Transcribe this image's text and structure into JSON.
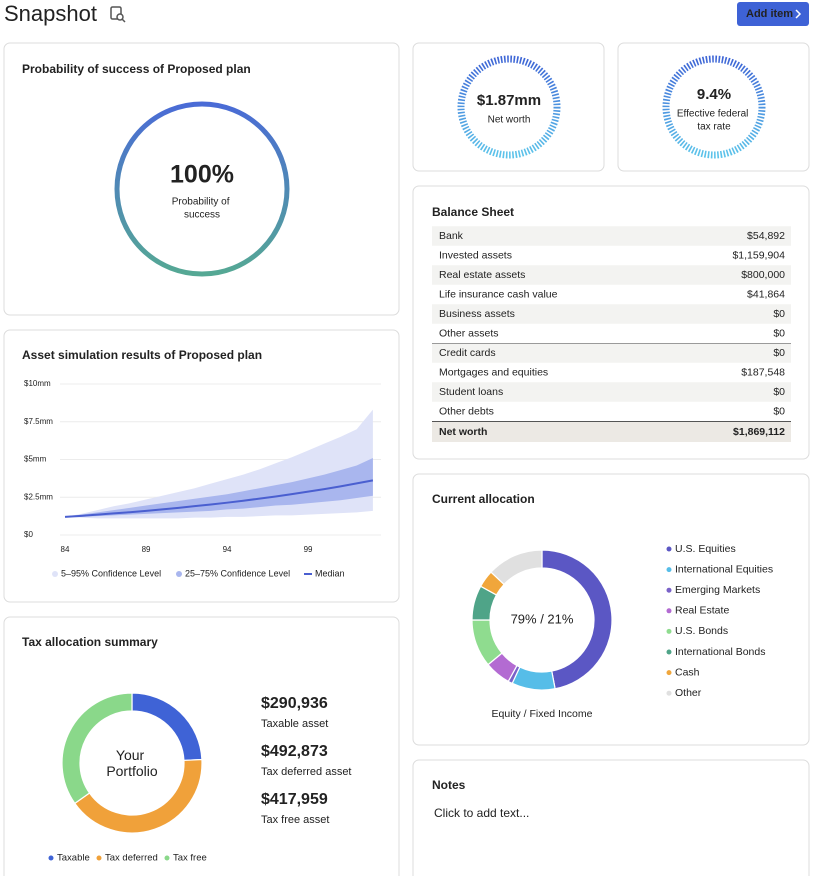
{
  "header": {
    "title": "Snapshot",
    "add_button": "Add item"
  },
  "probability": {
    "title": "Probability of success of Proposed plan",
    "value": "100%",
    "label": "Probability of success"
  },
  "net_worth": {
    "value": "$1.87mm",
    "label": "Net worth"
  },
  "tax_rate": {
    "value": "9.4%",
    "label": "Effective federal tax rate"
  },
  "balance_sheet": {
    "title": "Balance Sheet",
    "rows": [
      [
        "Bank",
        "$54,892"
      ],
      [
        "Invested assets",
        "$1,159,904"
      ],
      [
        "Real estate assets",
        "$800,000"
      ],
      [
        "Life insurance cash value",
        "$41,864"
      ],
      [
        "Business assets",
        "$0"
      ],
      [
        "Other assets",
        "$0"
      ],
      [
        "Credit cards",
        "$0"
      ],
      [
        "Mortgages and equities",
        "$187,548"
      ],
      [
        "Student loans",
        "$0"
      ],
      [
        "Other debts",
        "$0"
      ]
    ],
    "total": [
      "Net worth",
      "$1,869,112"
    ]
  },
  "notes": {
    "title": "Notes",
    "placeholder": "Click to add text..."
  },
  "chart_data": [
    {
      "type": "area",
      "title": "Asset simulation results of Proposed plan",
      "x": [
        84,
        85,
        86,
        87,
        88,
        89,
        90,
        91,
        92,
        93,
        94,
        95,
        96,
        97,
        98,
        99,
        100,
        101,
        102,
        103
      ],
      "xlim": [
        84,
        103.5
      ],
      "xticks": [
        84,
        89,
        94,
        99
      ],
      "ylim": [
        0,
        10
      ],
      "yticks": [
        {
          "value": 0,
          "label": "$0"
        },
        {
          "value": 2.5,
          "label": "$2.5mm"
        },
        {
          "value": 5,
          "label": "$5mm"
        },
        {
          "value": 7.5,
          "label": "$7.5mm"
        },
        {
          "value": 10,
          "label": "$10mm"
        }
      ],
      "grid": true,
      "series": [
        {
          "name": "5–95% Confidence Level",
          "color": "#dfe3f8",
          "low": [
            1.2,
            1.15,
            1.1,
            1.1,
            1.1,
            1.1,
            1.1,
            1.1,
            1.15,
            1.15,
            1.2,
            1.2,
            1.25,
            1.3,
            1.3,
            1.35,
            1.4,
            1.45,
            1.5,
            1.6
          ],
          "high": [
            1.2,
            1.4,
            1.65,
            1.9,
            2.1,
            2.35,
            2.6,
            2.85,
            3.1,
            3.4,
            3.7,
            4.0,
            4.35,
            4.75,
            5.15,
            5.6,
            6.05,
            6.5,
            7.0,
            8.3
          ]
        },
        {
          "name": "25–75% Confidence Level",
          "color": "#a9b6ee",
          "low": [
            1.2,
            1.2,
            1.25,
            1.3,
            1.35,
            1.4,
            1.45,
            1.5,
            1.55,
            1.6,
            1.7,
            1.75,
            1.85,
            1.95,
            2.0,
            2.1,
            2.2,
            2.3,
            2.45,
            2.6
          ],
          "high": [
            1.2,
            1.35,
            1.5,
            1.65,
            1.8,
            1.95,
            2.1,
            2.25,
            2.4,
            2.55,
            2.7,
            2.9,
            3.1,
            3.3,
            3.5,
            3.75,
            4.0,
            4.3,
            4.6,
            5.1
          ]
        },
        {
          "name": "Median",
          "color": "#4a5fd0",
          "values": [
            1.2,
            1.27,
            1.35,
            1.43,
            1.51,
            1.6,
            1.7,
            1.8,
            1.91,
            2.02,
            2.14,
            2.27,
            2.41,
            2.55,
            2.71,
            2.87,
            3.04,
            3.22,
            3.42,
            3.62
          ]
        }
      ]
    },
    {
      "type": "donut",
      "title": "Current allocation",
      "center_label": "79% / 21%",
      "caption": "Equity / Fixed Income",
      "categories": [
        "U.S. Equities",
        "International Equities",
        "Emerging Markets",
        "Real Estate",
        "U.S. Bonds",
        "International Bonds",
        "Cash",
        "Other"
      ],
      "values": [
        47,
        10,
        1,
        6,
        11,
        8,
        4,
        13
      ],
      "colors": [
        "#5b57c4",
        "#56bde8",
        "#7a62c8",
        "#b36bd2",
        "#8fdc8f",
        "#4fa488",
        "#f0a63b",
        "#e0e0e0"
      ]
    },
    {
      "type": "donut",
      "title": "Tax allocation summary",
      "center_label": "Your Portfolio",
      "categories": [
        "Taxable",
        "Tax deferred",
        "Tax free"
      ],
      "values": [
        290936,
        492873,
        417959
      ],
      "value_labels": [
        "$290,936",
        "$492,873",
        "$417,959"
      ],
      "value_descriptions": [
        "Taxable asset",
        "Tax deferred asset",
        "Tax free asset"
      ],
      "colors": [
        "#3f63d6",
        "#f0a13a",
        "#8ad88a"
      ]
    }
  ]
}
